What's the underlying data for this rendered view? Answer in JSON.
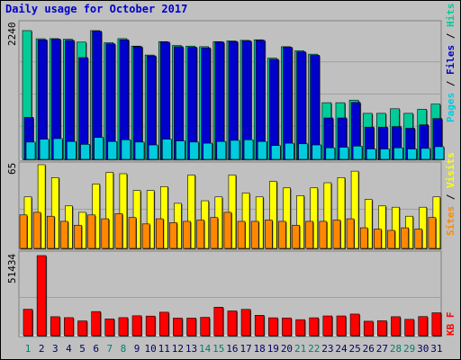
{
  "title": "Daily usage for October 2017",
  "colors": {
    "background": "#c0c0c0",
    "pages": "#00ccdd",
    "files": "#0000cc",
    "hits": "#00cc99",
    "sites": "#ff8800",
    "visits": "#ffff00",
    "kb": "#ff0000",
    "weekend_label": "#00806b",
    "weekday_label": "#000066"
  },
  "chart_data": [
    {
      "type": "bar",
      "name": "top",
      "y_label": "2240",
      "legend": [
        "Pages",
        "Files",
        "Hits"
      ],
      "series": [
        {
          "name": "Hits",
          "values": [
            2240,
            2098,
            2100,
            2090,
            2040,
            2240,
            2030,
            2100,
            1970,
            1815,
            2048,
            1980,
            1970,
            1960,
            2048,
            2060,
            2070,
            2080,
            1760,
            1960,
            1890,
            1830,
            985,
            985,
            1030,
            800,
            800,
            880,
            800,
            870,
            960
          ]
        },
        {
          "name": "Files",
          "values": [
            730,
            2080,
            2090,
            2070,
            1770,
            2230,
            2010,
            2080,
            1960,
            1800,
            2040,
            1960,
            1950,
            1940,
            2040,
            2050,
            2060,
            2070,
            1740,
            1950,
            1870,
            1810,
            720,
            720,
            990,
            560,
            560,
            570,
            540,
            600,
            710
          ]
        },
        {
          "name": "Pages",
          "values": [
            300,
            350,
            360,
            310,
            260,
            380,
            310,
            340,
            300,
            250,
            350,
            320,
            300,
            280,
            310,
            330,
            340,
            310,
            240,
            280,
            270,
            250,
            200,
            210,
            230,
            180,
            180,
            200,
            180,
            190,
            220
          ]
        }
      ]
    },
    {
      "type": "bar",
      "name": "middle",
      "y_label": "65",
      "legend": [
        "Sites",
        "Visits"
      ],
      "series": [
        {
          "name": "Visits",
          "values": [
            40,
            65,
            55,
            33,
            28,
            50,
            59,
            58,
            45,
            45,
            48,
            35,
            57,
            37,
            40,
            57,
            43,
            40,
            52,
            47,
            41,
            47,
            51,
            55,
            60,
            38,
            33,
            32,
            25,
            32,
            40
          ]
        },
        {
          "name": "Sites",
          "values": [
            26,
            28,
            25,
            21,
            18,
            26,
            23,
            27,
            24,
            19,
            23,
            20,
            21,
            22,
            24,
            28,
            21,
            21,
            22,
            21,
            18,
            21,
            21,
            22,
            23,
            16,
            15,
            14,
            16,
            15,
            24
          ]
        }
      ]
    },
    {
      "type": "bar",
      "name": "bottom",
      "y_label": "51434",
      "legend": [
        "KB",
        "F"
      ],
      "series": [
        {
          "name": "KB",
          "values": [
            17000,
            51434,
            12200,
            11600,
            9500,
            15500,
            10800,
            11600,
            12800,
            12600,
            15100,
            11300,
            11300,
            11800,
            18300,
            15900,
            16900,
            13100,
            11500,
            11400,
            10300,
            11500,
            12700,
            12700,
            13900,
            9300,
            9600,
            12200,
            10500,
            12300,
            14700
          ]
        }
      ]
    }
  ],
  "x_labels": [
    "1",
    "2",
    "3",
    "4",
    "5",
    "6",
    "7",
    "8",
    "9",
    "10",
    "11",
    "12",
    "13",
    "14",
    "15",
    "16",
    "17",
    "18",
    "19",
    "20",
    "21",
    "22",
    "23",
    "24",
    "25",
    "26",
    "27",
    "28",
    "29",
    "30",
    "31"
  ],
  "weekend_days": [
    1,
    7,
    8,
    14,
    15,
    21,
    22,
    28,
    29
  ]
}
